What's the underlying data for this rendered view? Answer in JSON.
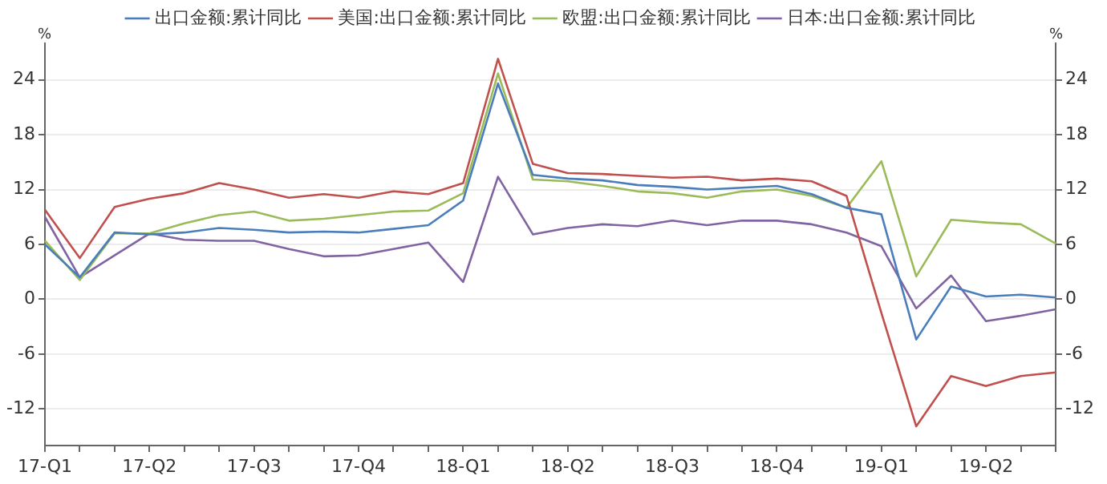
{
  "chart_data": {
    "type": "line",
    "ylabel": "%",
    "y2label": "%",
    "categories": [
      "17-Q1",
      null,
      null,
      "17-Q2",
      null,
      null,
      "17-Q3",
      null,
      null,
      "17-Q4",
      null,
      null,
      "18-Q1",
      null,
      null,
      "18-Q2",
      null,
      null,
      "18-Q3",
      null,
      null,
      "18-Q4",
      null,
      null,
      "19-Q1",
      null,
      null,
      "19-Q2",
      null,
      null
    ],
    "series": [
      {
        "name": "出口金额:累计同比",
        "color": "#4a7ebb",
        "values": [
          6.0,
          2.4,
          7.3,
          7.1,
          7.3,
          7.8,
          7.6,
          7.3,
          7.4,
          7.3,
          7.7,
          8.1,
          10.8,
          23.6,
          13.6,
          13.2,
          13.0,
          12.5,
          12.3,
          12.0,
          12.2,
          12.4,
          11.5,
          10.0,
          9.3,
          -4.4,
          1.4,
          0.3,
          0.5,
          0.2
        ]
      },
      {
        "name": "美国:出口金额:累计同比",
        "color": "#c0504d",
        "values": [
          9.8,
          4.5,
          10.1,
          11.0,
          11.6,
          12.7,
          12.0,
          11.1,
          11.5,
          11.1,
          11.8,
          11.5,
          12.7,
          26.3,
          14.8,
          13.8,
          13.7,
          13.5,
          13.3,
          13.4,
          13.0,
          13.2,
          12.9,
          11.3,
          -1.5,
          -13.9,
          -8.4,
          -9.5,
          -8.4,
          -8.0
        ]
      },
      {
        "name": "欧盟:出口金额:累计同比",
        "color": "#9bbb59",
        "values": [
          6.4,
          2.1,
          7.2,
          7.2,
          8.3,
          9.2,
          9.6,
          8.6,
          8.8,
          9.2,
          9.6,
          9.7,
          11.6,
          24.7,
          13.1,
          12.9,
          12.4,
          11.8,
          11.6,
          11.1,
          11.8,
          12.0,
          11.3,
          10.0,
          15.1,
          2.5,
          8.7,
          8.4,
          8.2,
          6.1
        ]
      },
      {
        "name": "日本:出口金额:累计同比",
        "color": "#8064a2",
        "values": [
          9.0,
          2.4,
          4.8,
          7.2,
          6.5,
          6.4,
          6.4,
          5.5,
          4.7,
          4.8,
          5.5,
          6.2,
          1.9,
          13.4,
          7.1,
          7.8,
          8.2,
          8.0,
          8.6,
          8.1,
          8.6,
          8.6,
          8.2,
          7.3,
          5.8,
          -1.0,
          2.6,
          -2.4,
          -1.8,
          -1.1
        ]
      }
    ],
    "ylim": [
      -16,
      28
    ],
    "yticks": [
      -12,
      -6,
      0,
      6,
      12,
      18,
      24
    ],
    "y2lim": [
      -16,
      28
    ],
    "y2ticks": [
      -12,
      -6,
      0,
      6,
      12,
      18,
      24
    ],
    "grid": "y",
    "legend": "top",
    "marker": "none",
    "line_style": "solid"
  }
}
